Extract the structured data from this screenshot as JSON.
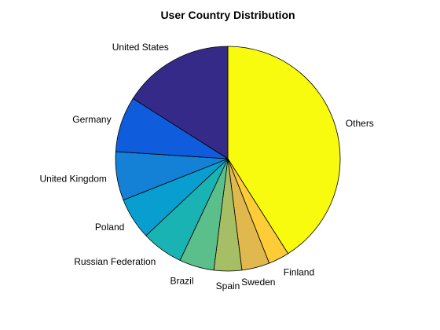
{
  "chart_data": {
    "type": "pie",
    "title": "User Country Distribution",
    "slices": [
      {
        "label": "Others",
        "value": 41,
        "color": "#F9FB0E"
      },
      {
        "label": "Finland",
        "value": 3,
        "color": "#FDCC36"
      },
      {
        "label": "Sweden",
        "value": 4,
        "color": "#E1B84D"
      },
      {
        "label": "Spain",
        "value": 4,
        "color": "#A6BE64"
      },
      {
        "label": "Brazil",
        "value": 5,
        "color": "#5BBF8C"
      },
      {
        "label": "Russian Federation",
        "value": 6,
        "color": "#1AB3B3"
      },
      {
        "label": "Poland",
        "value": 6,
        "color": "#089FD0"
      },
      {
        "label": "United Kingdom",
        "value": 7,
        "color": "#1481D6"
      },
      {
        "label": "Germany",
        "value": 8,
        "color": "#0F5CDD"
      },
      {
        "label": "United States",
        "value": 16,
        "color": "#352A87"
      }
    ],
    "start": "12 o'clock",
    "direction": "clockwise",
    "legend": "none"
  }
}
